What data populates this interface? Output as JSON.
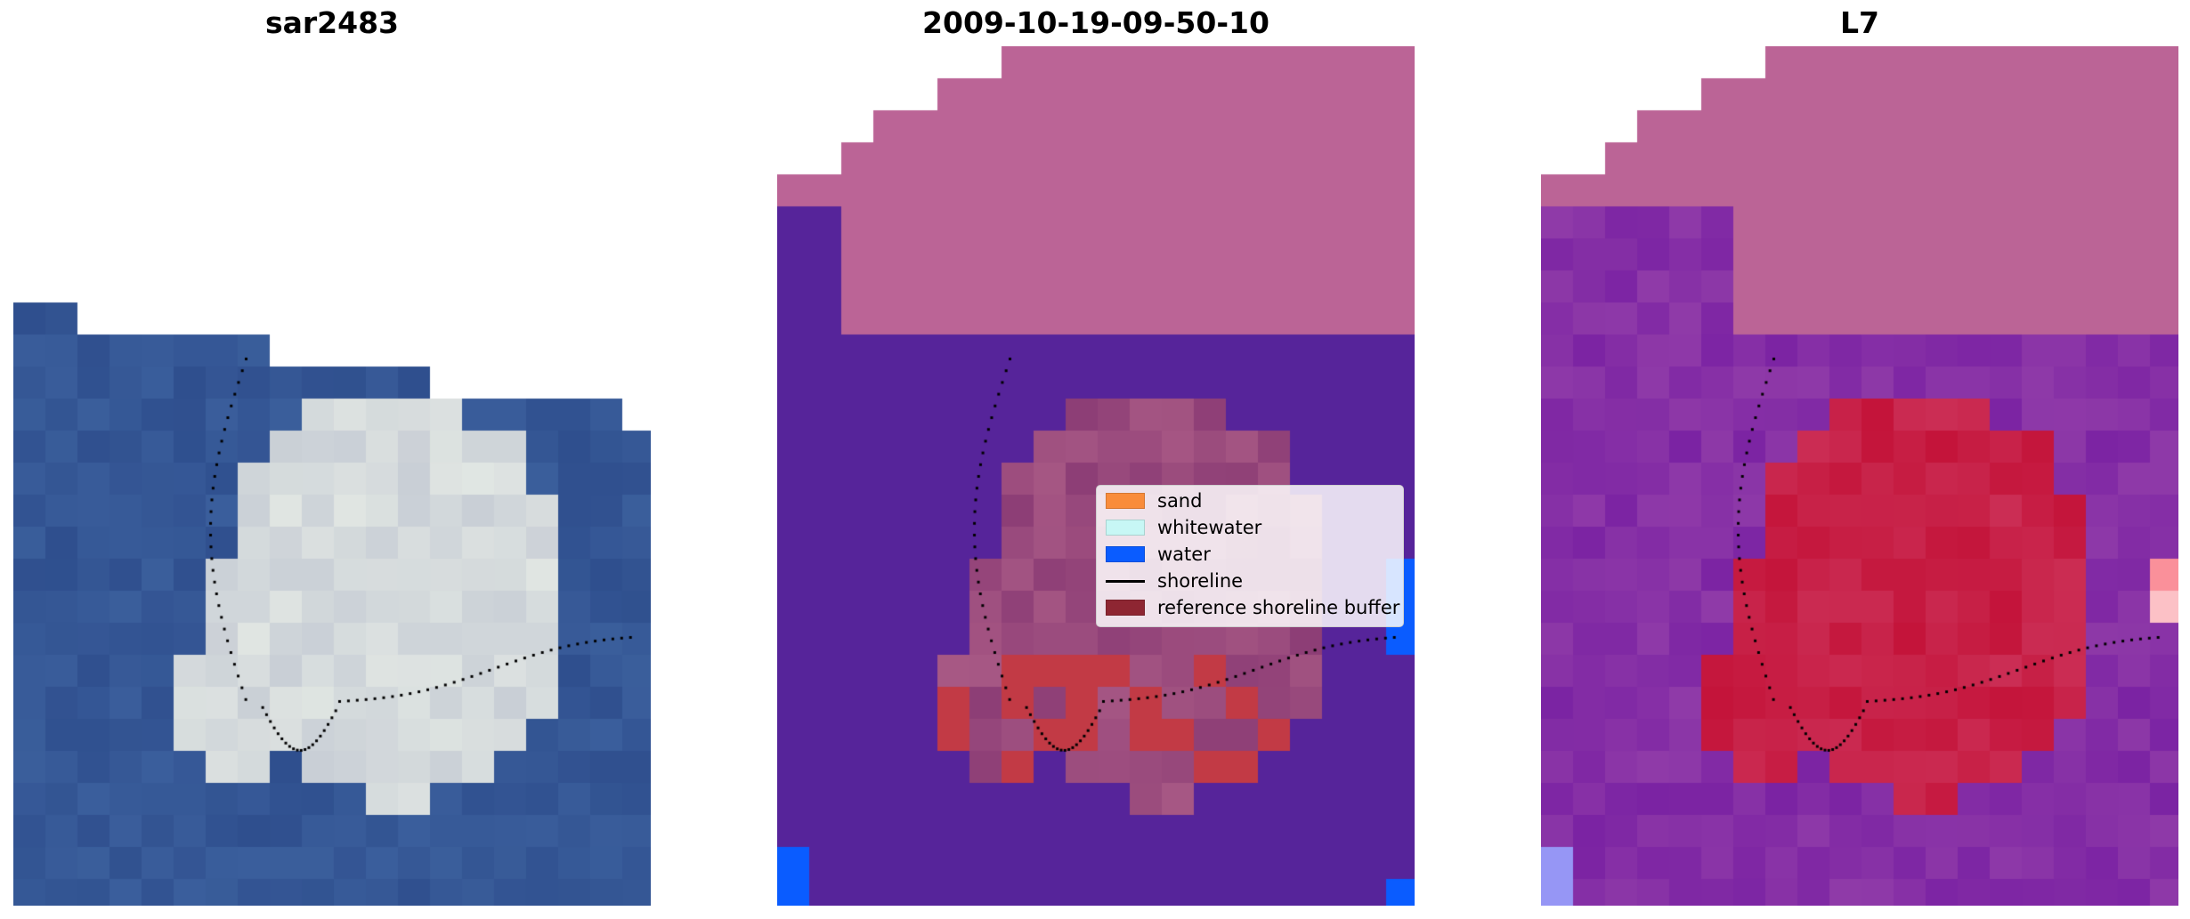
{
  "panels": [
    {
      "title": "sar2483",
      "kind": "rgb"
    },
    {
      "title": "2009-10-19-09-50-10",
      "kind": "classified"
    },
    {
      "title": "L7",
      "kind": "mndwi"
    }
  ],
  "legend": {
    "items": [
      {
        "label": "sand",
        "color": "#f98c3b",
        "type": "patch"
      },
      {
        "label": "whitewater",
        "color": "#c7f7f5",
        "type": "patch"
      },
      {
        "label": "water",
        "color": "#0a5cff",
        "type": "patch"
      },
      {
        "label": "shoreline",
        "color": "#000000",
        "type": "line"
      },
      {
        "label": "reference shoreline buffer",
        "color": "#8e2632",
        "type": "patch"
      }
    ]
  },
  "colors": {
    "ocean_rgb": "#2f4f8e",
    "land_rgb": "#c9cfd6",
    "nodata_class": "#bb6496",
    "water_class": "#56249a",
    "land_class": "#8d3e76",
    "buffer_class": "#c23a45",
    "water_blue": "#0a5cff",
    "mndwi_land": "#c4143a",
    "mndwi_water": "#8f3aa8",
    "mndwi_nodata": "#bb6496"
  }
}
